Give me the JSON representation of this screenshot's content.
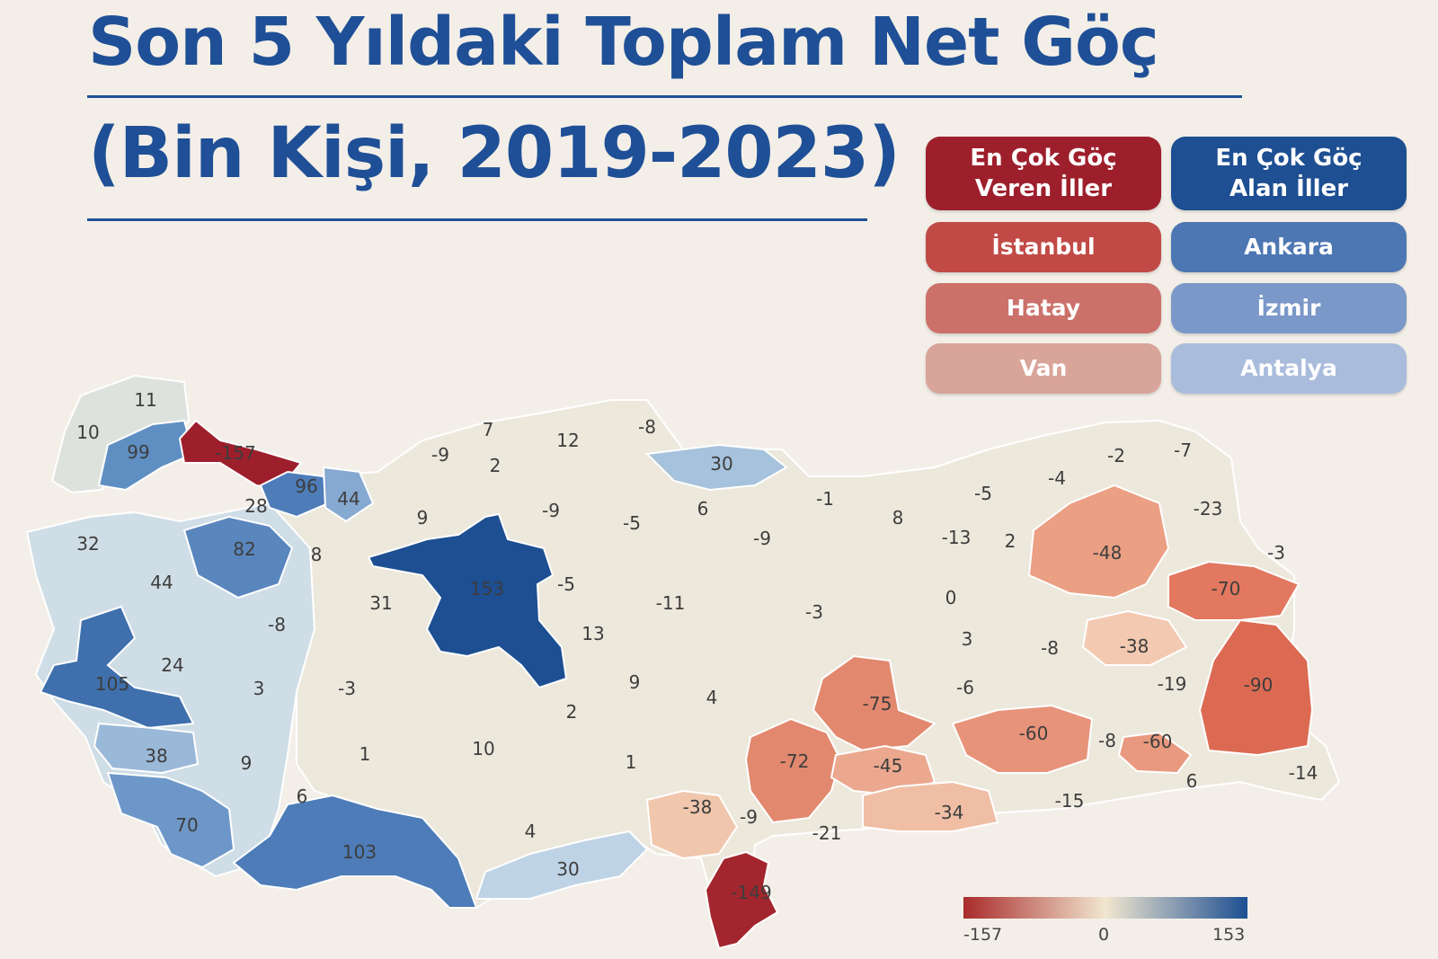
{
  "title": {
    "line1": "Son 5 Yıldaki Toplam Net Göç",
    "line2": "(Bin Kişi, 2019-2023)"
  },
  "legend": {
    "emigration": {
      "header_line1": "En Çok Göç",
      "header_line2": "Veren İller",
      "items": [
        "İstanbul",
        "Hatay",
        "Van"
      ],
      "colors": [
        "#9e1f2c",
        "#c14a47",
        "#cc716a",
        "#d9a49a"
      ]
    },
    "immigration": {
      "header_line1": "En Çok Göç",
      "header_line2": "Alan İller",
      "items": [
        "Ankara",
        "İzmir",
        "Antalya"
      ],
      "colors": [
        "#1d4f92",
        "#4d77b3",
        "#7a98c8",
        "#a9bcdc"
      ]
    }
  },
  "color_scale": {
    "min_label": "-157",
    "mid_label": "0",
    "max_label": "153",
    "low_color": "#a92b2b",
    "mid_color": "#f1e6cf",
    "high_color": "#1d4f92"
  },
  "map_labels": [
    {
      "value": "11"
    },
    {
      "value": "10"
    },
    {
      "value": "99"
    },
    {
      "value": "-157"
    },
    {
      "value": "96"
    },
    {
      "value": "28"
    },
    {
      "value": "44"
    },
    {
      "value": "32"
    },
    {
      "value": "82"
    },
    {
      "value": "8"
    },
    {
      "value": "44"
    },
    {
      "value": "105"
    },
    {
      "value": "24"
    },
    {
      "value": "38"
    },
    {
      "value": "70"
    },
    {
      "value": "103"
    },
    {
      "value": "-8"
    },
    {
      "value": "3"
    },
    {
      "value": "-3"
    },
    {
      "value": "9"
    },
    {
      "value": "1"
    },
    {
      "value": "6"
    },
    {
      "value": "31"
    },
    {
      "value": "9"
    },
    {
      "value": "153"
    },
    {
      "value": "-5"
    },
    {
      "value": "13"
    },
    {
      "value": "10"
    },
    {
      "value": "2"
    },
    {
      "value": "4"
    },
    {
      "value": "30"
    },
    {
      "value": "-9"
    },
    {
      "value": "7"
    },
    {
      "value": "2"
    },
    {
      "value": "12"
    },
    {
      "value": "-8"
    },
    {
      "value": "-9"
    },
    {
      "value": "-5"
    },
    {
      "value": "30"
    },
    {
      "value": "6"
    },
    {
      "value": "-9"
    },
    {
      "value": "-1"
    },
    {
      "value": "-11"
    },
    {
      "value": "-3"
    },
    {
      "value": "9"
    },
    {
      "value": "4"
    },
    {
      "value": "1"
    },
    {
      "value": "8"
    },
    {
      "value": "-5"
    },
    {
      "value": "-13"
    },
    {
      "value": "2"
    },
    {
      "value": "0"
    },
    {
      "value": "3"
    },
    {
      "value": "-8"
    },
    {
      "value": "-6"
    },
    {
      "value": "-4"
    },
    {
      "value": "-2"
    },
    {
      "value": "-7"
    },
    {
      "value": "-23"
    },
    {
      "value": "-48"
    },
    {
      "value": "-3"
    },
    {
      "value": "-70"
    },
    {
      "value": "-38"
    },
    {
      "value": "-90"
    },
    {
      "value": "-19"
    },
    {
      "value": "-75"
    },
    {
      "value": "-60"
    },
    {
      "value": "-8"
    },
    {
      "value": "-60"
    },
    {
      "value": "-72"
    },
    {
      "value": "-45"
    },
    {
      "value": "-14"
    },
    {
      "value": "6"
    },
    {
      "value": "-15"
    },
    {
      "value": "-34"
    },
    {
      "value": "-38"
    },
    {
      "value": "-9"
    },
    {
      "value": "-21"
    },
    {
      "value": "-149"
    }
  ]
}
